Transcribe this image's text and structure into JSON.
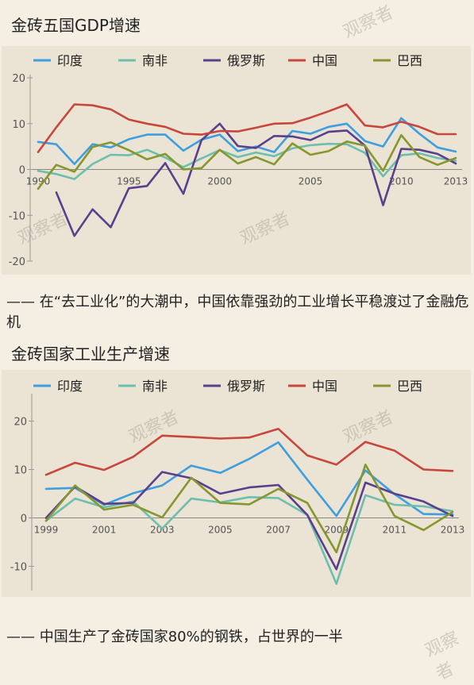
{
  "chart1": {
    "title": "金砖五国GDP增速",
    "colors": {
      "印度": "#3d9fe0",
      "南非": "#6dbfad",
      "俄罗斯": "#5a3f8c",
      "中国": "#c8473c",
      "巴西": "#86972e"
    }
  },
  "caption1": "—— 在“去工业化”的大潮中，中国依靠强劲的工业增长平稳渡过了金融危机",
  "chart2": {
    "title": "金砖国家工业生产增速"
  },
  "caption2": "—— 中国生产了金砖国家80%的钢铁，占世界的一半",
  "watermark": "观察者",
  "chart_data": [
    {
      "type": "line",
      "title": "金砖五国GDP增速",
      "x": [
        1990,
        1991,
        1992,
        1993,
        1994,
        1995,
        1996,
        1997,
        1998,
        1999,
        2000,
        2001,
        2002,
        2003,
        2004,
        2005,
        2006,
        2007,
        2008,
        2009,
        2010,
        2011,
        2012,
        2013
      ],
      "xticks": [
        "1990",
        "1995",
        "2000",
        "2005",
        "2010",
        "2013"
      ],
      "ylim": [
        -20,
        20
      ],
      "yticks": [
        20,
        10,
        0,
        -10,
        -20
      ],
      "grid": false,
      "legend": "top",
      "series": [
        {
          "name": "印度",
          "color": "#3d9fe0",
          "values": [
            6,
            5.5,
            1.2,
            5.5,
            4.8,
            6.6,
            7.6,
            7.6,
            4.1,
            6.5,
            7.6,
            4,
            5,
            3.8,
            8.4,
            7.8,
            9.3,
            10,
            6.2,
            5,
            11.2,
            7.8,
            4.8,
            3.9
          ]
        },
        {
          "name": "南非",
          "color": "#6dbfad",
          "values": [
            -0.3,
            -1,
            -2.1,
            1.2,
            3.2,
            3.1,
            4.3,
            2.6,
            0.5,
            2.4,
            4.2,
            2.7,
            3.7,
            2.9,
            4.6,
            5.3,
            5.6,
            5.5,
            3.6,
            -1.5,
            3.1,
            3.5,
            2.5,
            1.9
          ]
        },
        {
          "name": "俄罗斯",
          "color": "#5a3f8c",
          "values": [
            null,
            -5,
            -14.5,
            -8.7,
            -12.6,
            -4.1,
            -3.6,
            1.4,
            -5.3,
            6.4,
            10,
            5.1,
            4.7,
            7.3,
            7.2,
            6.4,
            8.2,
            8.5,
            5.2,
            -7.8,
            4.5,
            4.3,
            3.4,
            1.3
          ]
        },
        {
          "name": "中国",
          "color": "#c8473c",
          "values": [
            3.8,
            9.2,
            14.2,
            14,
            13.1,
            10.9,
            10,
            9.3,
            7.8,
            7.6,
            8.4,
            8.3,
            9.1,
            10,
            10.1,
            11.3,
            12.7,
            14.2,
            9.6,
            9.2,
            10.4,
            9.3,
            7.7,
            7.7
          ]
        },
        {
          "name": "巴西",
          "color": "#86972e",
          "values": [
            -4.2,
            1,
            -0.5,
            4.9,
            5.9,
            4.2,
            2.2,
            3.4,
            0,
            0.3,
            4.3,
            1.3,
            2.7,
            1.1,
            5.7,
            3.2,
            4,
            6.1,
            5.2,
            -0.3,
            7.5,
            2.7,
            1,
            2.5
          ]
        }
      ]
    },
    {
      "type": "line",
      "title": "金砖国家工业生产增速",
      "x": [
        1999,
        2000,
        2001,
        2002,
        2003,
        2004,
        2005,
        2006,
        2007,
        2008,
        2009,
        2010,
        2011,
        2012,
        2013
      ],
      "xticks": [
        "1999",
        "2001",
        "2003",
        "2005",
        "2007",
        "2009",
        "2011",
        "2013"
      ],
      "ylim": [
        -15,
        25
      ],
      "yticks": [
        20,
        10,
        0,
        -10
      ],
      "grid": false,
      "legend": "top",
      "series": [
        {
          "name": "印度",
          "color": "#3d9fe0",
          "values": [
            6,
            6.2,
            2.7,
            5.1,
            6.7,
            10.8,
            9.3,
            12.2,
            15.6,
            7.9,
            0.4,
            9.8,
            4.9,
            0.8,
            0.7
          ]
        },
        {
          "name": "南非",
          "color": "#6dbfad",
          "values": [
            -0.6,
            4,
            2.2,
            3.4,
            -2.2,
            4,
            3.2,
            4.3,
            4.1,
            0.6,
            -13.6,
            4.7,
            2.7,
            2.4,
            1.4
          ]
        },
        {
          "name": "俄罗斯",
          "color": "#5a3f8c",
          "values": [
            0,
            6.5,
            2.9,
            3.1,
            9.5,
            8.2,
            5,
            6.3,
            6.8,
            0.6,
            -10.6,
            7.3,
            5,
            3.4,
            0.4
          ]
        },
        {
          "name": "中国",
          "color": "#c8473c",
          "values": [
            8.9,
            11.4,
            9.9,
            12.6,
            17,
            16.7,
            16.4,
            16.6,
            18.4,
            12.9,
            11,
            15.7,
            13.9,
            10,
            9.7
          ]
        },
        {
          "name": "巴西",
          "color": "#86972e",
          "values": [
            -0.6,
            6.7,
            1.7,
            2.7,
            0.1,
            8.3,
            3.1,
            2.8,
            6,
            3.1,
            -7.1,
            11,
            0.4,
            -2.5,
            1.2
          ]
        }
      ]
    }
  ]
}
